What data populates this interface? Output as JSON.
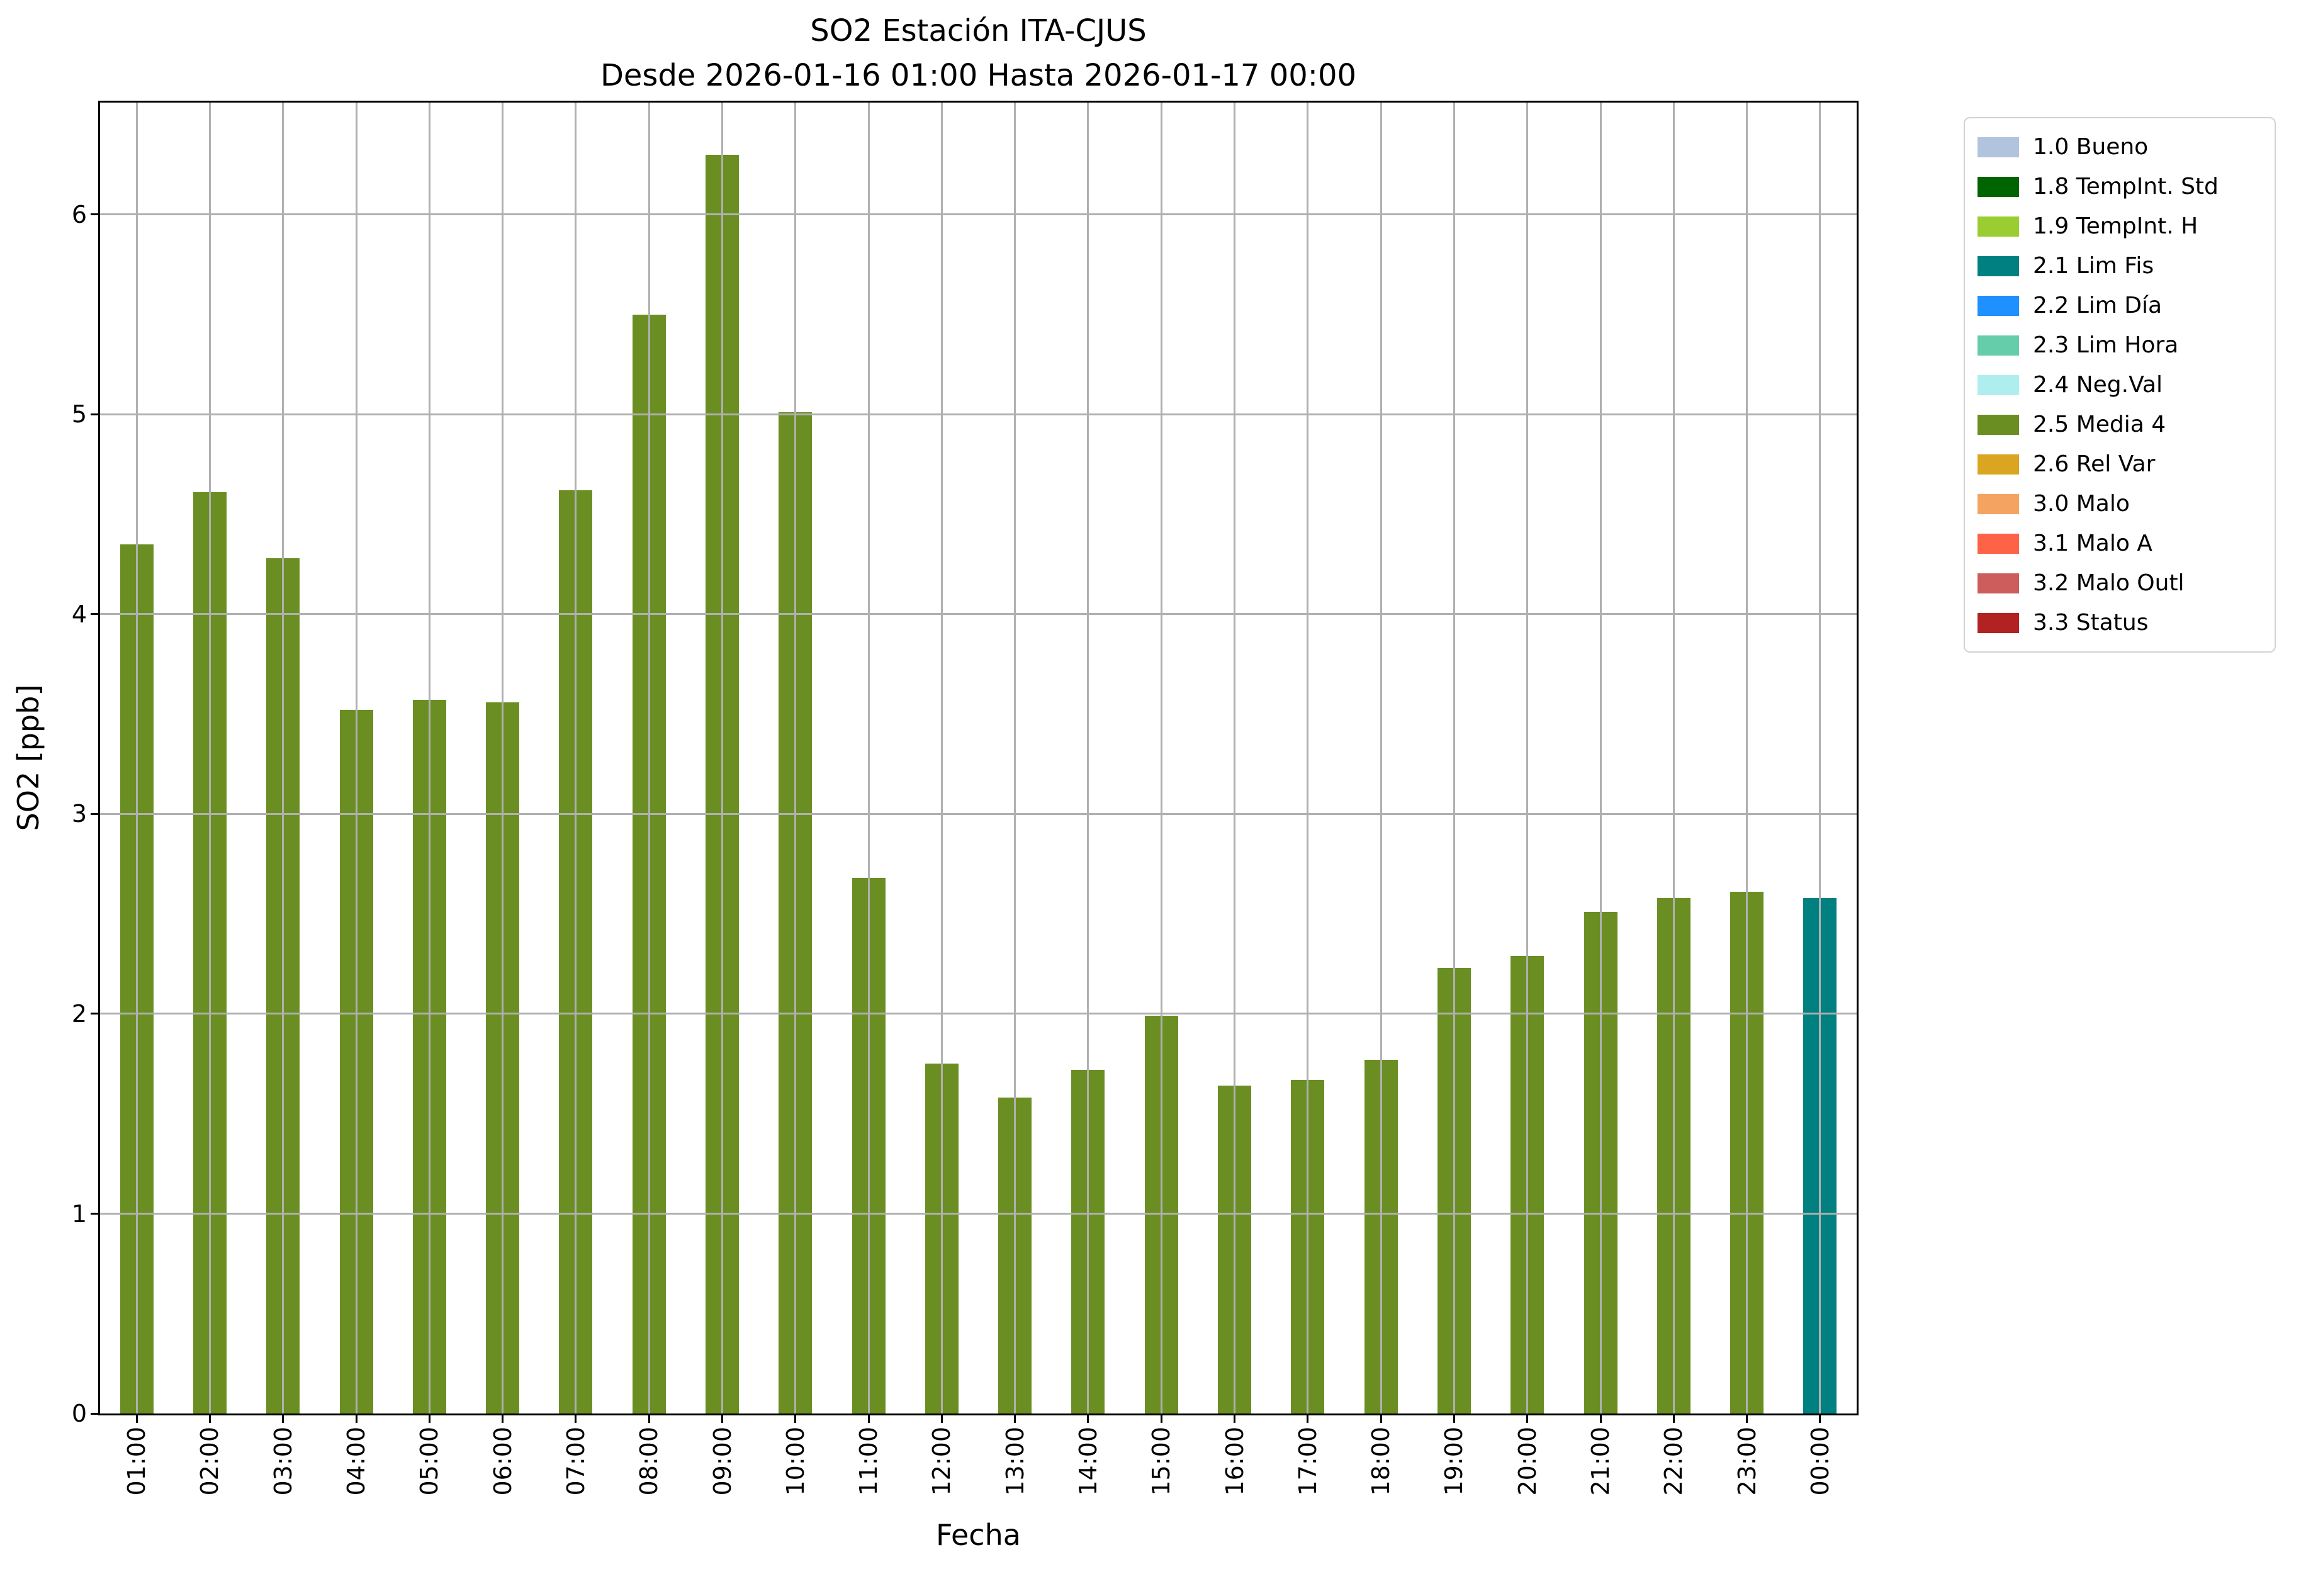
{
  "chart_data": {
    "type": "bar",
    "title": "SO2 Estación ITA-CJUS",
    "subtitle": "Desde 2026-01-16 01:00 Hasta 2026-01-17 00:00",
    "xlabel": "Fecha",
    "ylabel": "SO2 [ppb]",
    "ylim": [
      0,
      6.56
    ],
    "yticks": [
      0,
      1,
      2,
      3,
      4,
      5,
      6
    ],
    "grid": true,
    "categories": [
      "01:00",
      "02:00",
      "03:00",
      "04:00",
      "05:00",
      "06:00",
      "07:00",
      "08:00",
      "09:00",
      "10:00",
      "11:00",
      "12:00",
      "13:00",
      "14:00",
      "15:00",
      "16:00",
      "17:00",
      "18:00",
      "19:00",
      "20:00",
      "21:00",
      "22:00",
      "23:00",
      "00:00"
    ],
    "values": [
      4.35,
      4.61,
      4.28,
      3.52,
      3.57,
      3.56,
      4.62,
      5.5,
      6.3,
      5.01,
      2.68,
      1.75,
      1.58,
      1.72,
      1.99,
      1.64,
      1.67,
      1.77,
      2.23,
      2.29,
      2.51,
      2.58,
      2.61,
      2.58
    ],
    "bar_colors": [
      "#6b8e23",
      "#6b8e23",
      "#6b8e23",
      "#6b8e23",
      "#6b8e23",
      "#6b8e23",
      "#6b8e23",
      "#6b8e23",
      "#6b8e23",
      "#6b8e23",
      "#6b8e23",
      "#6b8e23",
      "#6b8e23",
      "#6b8e23",
      "#6b8e23",
      "#6b8e23",
      "#6b8e23",
      "#6b8e23",
      "#6b8e23",
      "#6b8e23",
      "#6b8e23",
      "#6b8e23",
      "#6b8e23",
      "#008080"
    ],
    "grid_color": "#b0b0b0",
    "legend": {
      "position": "upper right",
      "items": [
        {
          "label": "1.0 Bueno",
          "color": "#b0c4de"
        },
        {
          "label": "1.8 TempInt. Std",
          "color": "#006400"
        },
        {
          "label": "1.9 TempInt. H",
          "color": "#9acd32"
        },
        {
          "label": "2.1 Lim Fis",
          "color": "#008080"
        },
        {
          "label": "2.2 Lim Día",
          "color": "#1e90ff"
        },
        {
          "label": "2.3 Lim Hora",
          "color": "#66cdaa"
        },
        {
          "label": "2.4 Neg.Val",
          "color": "#afeeee"
        },
        {
          "label": "2.5 Media 4",
          "color": "#6b8e23"
        },
        {
          "label": "2.6 Rel Var",
          "color": "#daa520"
        },
        {
          "label": "3.0 Malo",
          "color": "#f4a460"
        },
        {
          "label": "3.1 Malo A",
          "color": "#ff6347"
        },
        {
          "label": "3.2 Malo Outl",
          "color": "#cd5c5c"
        },
        {
          "label": "3.3 Status",
          "color": "#b22222"
        }
      ]
    }
  }
}
